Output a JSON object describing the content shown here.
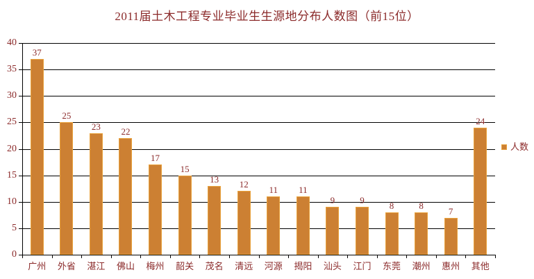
{
  "chart_data": {
    "type": "bar",
    "title": "2011届土木工程专业毕业生生源地分布人数图（前15位）",
    "categories": [
      "广州",
      "外省",
      "湛江",
      "佛山",
      "梅州",
      "韶关",
      "茂名",
      "清远",
      "河源",
      "揭阳",
      "汕头",
      "江门",
      "东莞",
      "潮州",
      "惠州",
      "其他"
    ],
    "series": [
      {
        "name": "人数",
        "values": [
          37,
          25,
          23,
          22,
          17,
          15,
          13,
          12,
          11,
          11,
          9,
          9,
          8,
          8,
          7,
          24
        ]
      }
    ],
    "xlabel": "",
    "ylabel": "",
    "ylim": [
      0,
      40
    ],
    "ytick_step": 5,
    "ytick_labels": [
      "0",
      "5",
      "10",
      "15",
      "20",
      "25",
      "30",
      "35",
      "40"
    ],
    "grid": true,
    "data_labels": true,
    "legend_position": "right",
    "colors": {
      "bar_fill": "#CC8033",
      "bar_border": "#E9A23C",
      "text": "#8B2A2A",
      "axis": "#000000",
      "gridline": "#000000",
      "background": "#FFFFFF"
    }
  }
}
